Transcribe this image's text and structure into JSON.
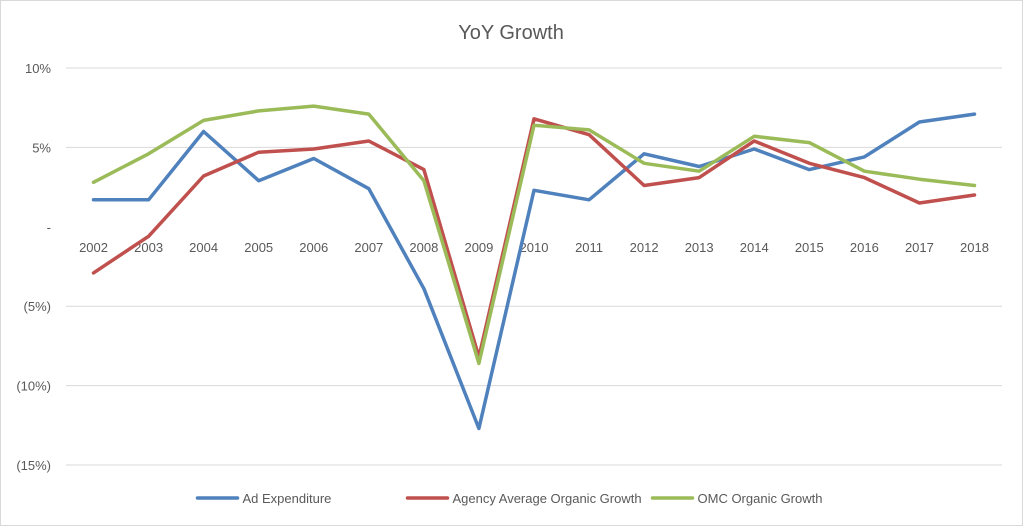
{
  "chart_data": {
    "type": "line",
    "title": "YoY Growth",
    "xlabel": "",
    "ylabel": "",
    "ylim": [
      -15,
      10
    ],
    "y_ticks": [
      {
        "value": 10,
        "label": "10%"
      },
      {
        "value": 5,
        "label": "5%"
      },
      {
        "value": 0,
        "label": "-"
      },
      {
        "value": -5,
        "label": "(5%)"
      },
      {
        "value": -10,
        "label": "(10%)"
      },
      {
        "value": -15,
        "label": "(15%)"
      }
    ],
    "grid": true,
    "legend_position": "bottom",
    "categories": [
      "2002",
      "2003",
      "2004",
      "2005",
      "2006",
      "2007",
      "2008",
      "2009",
      "2010",
      "2011",
      "2012",
      "2013",
      "2014",
      "2015",
      "2016",
      "2017",
      "2018"
    ],
    "series": [
      {
        "name": "Ad Expenditure",
        "color": "#4f81bd",
        "values": [
          1.7,
          1.7,
          6.0,
          2.9,
          4.3,
          2.4,
          -3.9,
          -12.7,
          2.3,
          1.7,
          4.6,
          3.8,
          4.9,
          3.6,
          4.4,
          6.6,
          7.1
        ]
      },
      {
        "name": "Agency Average Organic Growth",
        "color": "#c0504d",
        "values": [
          -2.9,
          -0.6,
          3.2,
          4.7,
          4.9,
          5.4,
          3.6,
          -8.2,
          6.8,
          5.8,
          2.6,
          3.1,
          5.4,
          4.0,
          3.1,
          1.5,
          2.0
        ]
      },
      {
        "name": "OMC Organic Growth",
        "color": "#9bbb59",
        "values": [
          2.8,
          4.6,
          6.7,
          7.3,
          7.6,
          7.1,
          2.9,
          -8.6,
          6.4,
          6.1,
          4.0,
          3.5,
          5.7,
          5.3,
          3.5,
          3.0,
          2.6
        ]
      }
    ]
  }
}
